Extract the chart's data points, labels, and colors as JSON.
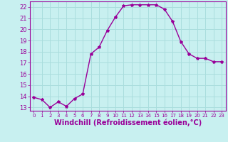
{
  "x": [
    0,
    1,
    2,
    3,
    4,
    5,
    6,
    7,
    8,
    9,
    10,
    11,
    12,
    13,
    14,
    15,
    16,
    17,
    18,
    19,
    20,
    21,
    22,
    23
  ],
  "y": [
    13.9,
    13.7,
    13.0,
    13.5,
    13.1,
    13.8,
    14.2,
    17.8,
    18.4,
    19.9,
    21.1,
    22.1,
    22.2,
    22.2,
    22.2,
    22.2,
    21.8,
    20.7,
    18.9,
    17.8,
    17.4,
    17.4,
    17.1,
    17.1
  ],
  "line_color": "#990099",
  "marker": "*",
  "marker_size": 3,
  "xlabel": "Windchill (Refroidissement éolien,°C)",
  "xlabel_fontsize": 7,
  "ylim": [
    12.7,
    22.5
  ],
  "xlim": [
    -0.5,
    23.5
  ],
  "yticks": [
    13,
    14,
    15,
    16,
    17,
    18,
    19,
    20,
    21,
    22
  ],
  "xticks": [
    0,
    1,
    2,
    3,
    4,
    5,
    6,
    7,
    8,
    9,
    10,
    11,
    12,
    13,
    14,
    15,
    16,
    17,
    18,
    19,
    20,
    21,
    22,
    23
  ],
  "bg_color": "#c8f0f0",
  "grid_color": "#aadddd",
  "line_width": 1.0
}
